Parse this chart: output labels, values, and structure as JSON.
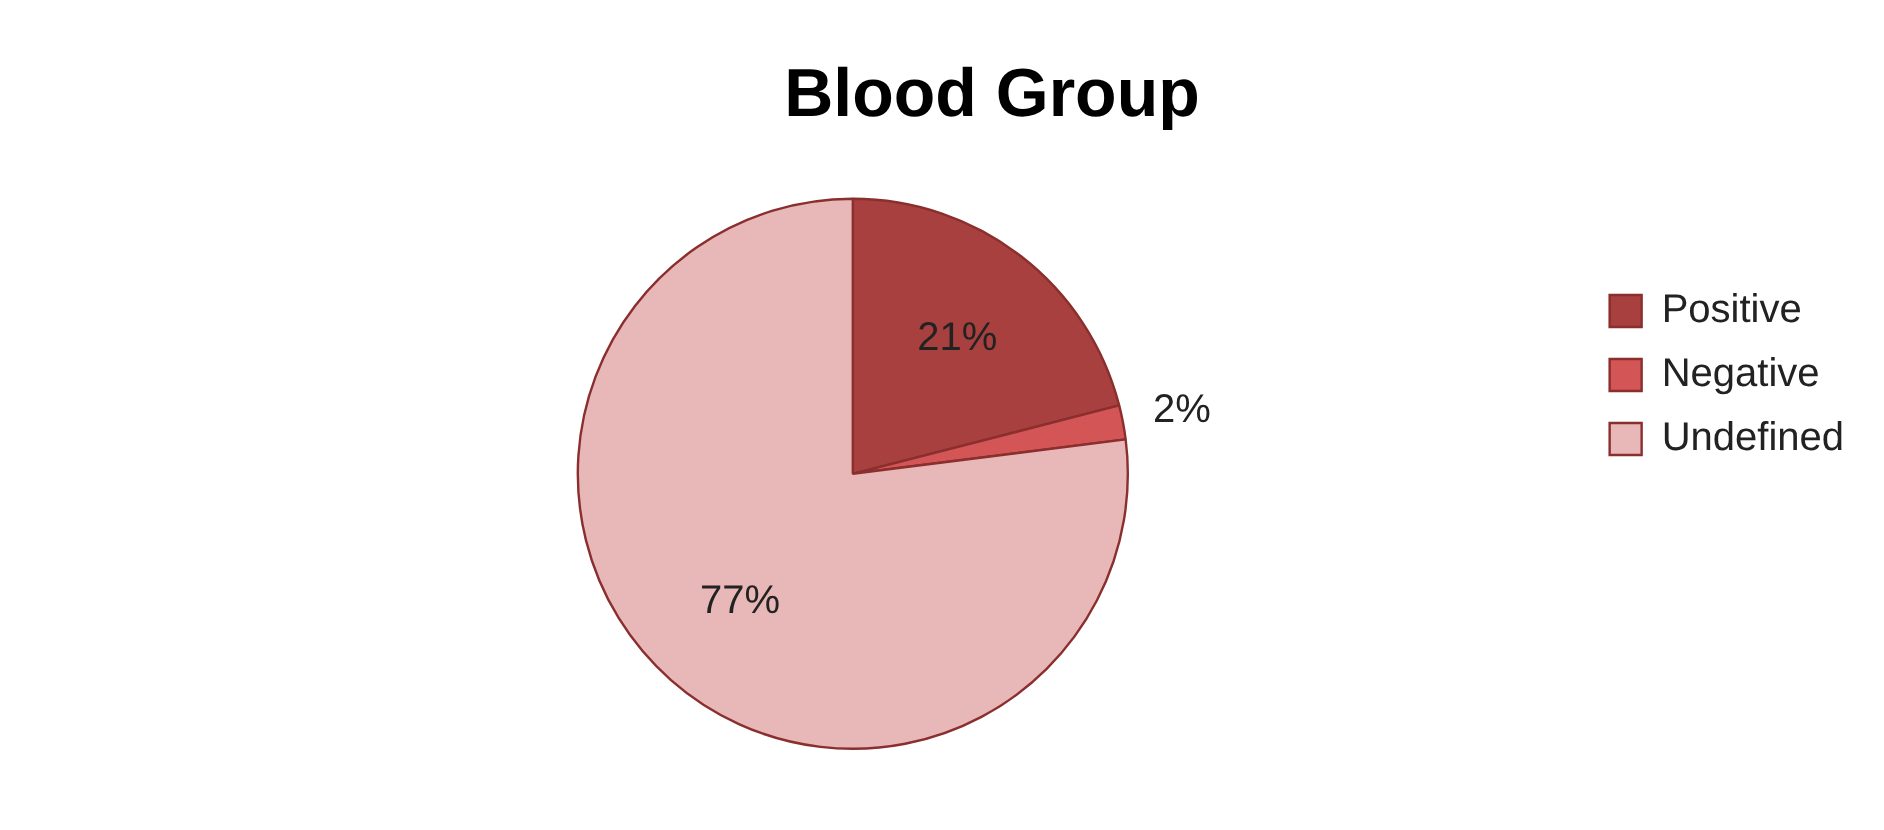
{
  "chart_data": {
    "type": "pie",
    "title": "Blood Group",
    "categories": [
      "Positive",
      "Negative",
      "Undefined"
    ],
    "values": [
      21,
      2,
      77
    ],
    "colors": [
      "#a8403f",
      "#d45556",
      "#e8b8b8"
    ],
    "value_labels": [
      "21%",
      "2%",
      "77%"
    ],
    "legend": "right"
  }
}
